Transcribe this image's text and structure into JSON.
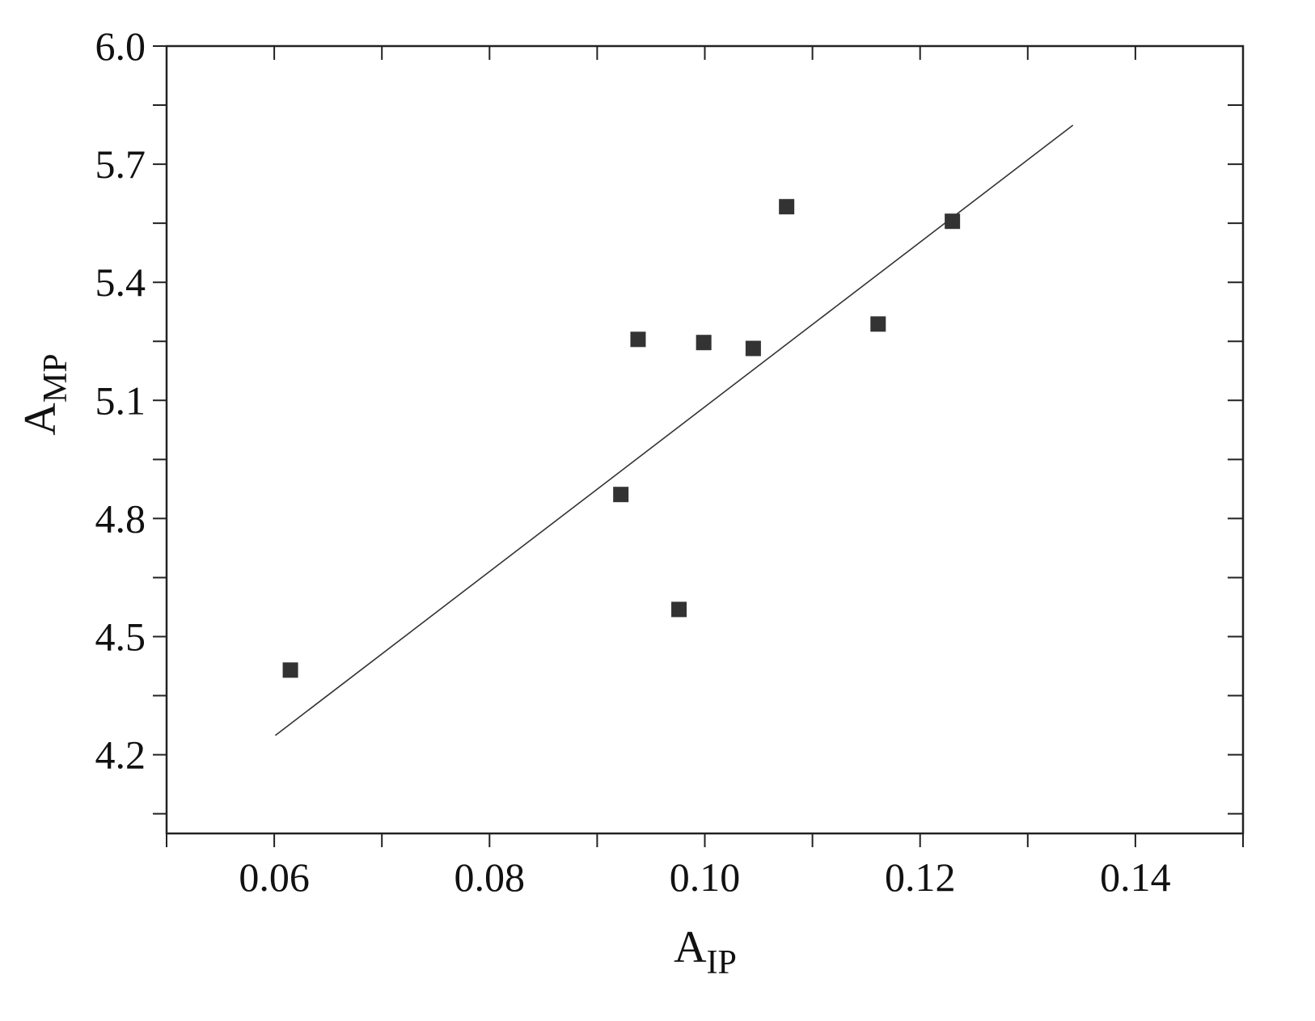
{
  "chart_data": {
    "type": "scatter",
    "title": "",
    "xlabel": {
      "main": "A",
      "sub": "IP"
    },
    "ylabel": {
      "main": "A",
      "sub": "MP"
    },
    "xlim": [
      0.05,
      0.15
    ],
    "ylim": [
      4.0,
      6.0
    ],
    "x_ticks": [
      "0.06",
      "0.08",
      "0.10",
      "0.12",
      "0.14"
    ],
    "y_ticks": [
      "4.2",
      "4.5",
      "4.8",
      "5.1",
      "5.4",
      "5.7",
      "6.0"
    ],
    "grid": false,
    "marker": "square",
    "marker_color": "#333333",
    "points": [
      {
        "x": 0.0615,
        "y": 4.415
      },
      {
        "x": 0.0922,
        "y": 4.861
      },
      {
        "x": 0.0938,
        "y": 5.255
      },
      {
        "x": 0.0976,
        "y": 4.569
      },
      {
        "x": 0.0999,
        "y": 5.247
      },
      {
        "x": 0.1045,
        "y": 5.232
      },
      {
        "x": 0.1076,
        "y": 5.592
      },
      {
        "x": 0.1161,
        "y": 5.294
      },
      {
        "x": 0.123,
        "y": 5.555
      }
    ],
    "fit_line": {
      "x": [
        0.0601,
        0.1342
      ],
      "y": [
        4.249,
        5.799
      ]
    }
  }
}
